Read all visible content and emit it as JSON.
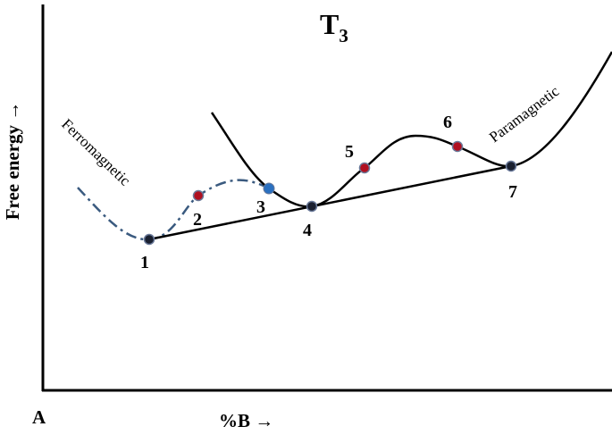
{
  "title": {
    "main": "T",
    "subscript": "3"
  },
  "axes": {
    "y_label": "Free energy →",
    "x_label": "%B →",
    "origin": "A"
  },
  "curves": {
    "dashed_label": "Ferromagnetic",
    "solid_label": "Paramagnetic"
  },
  "points": [
    {
      "label": "1"
    },
    {
      "label": "2"
    },
    {
      "label": "3"
    },
    {
      "label": "4"
    },
    {
      "label": "5"
    },
    {
      "label": "6"
    },
    {
      "label": "7"
    }
  ]
}
